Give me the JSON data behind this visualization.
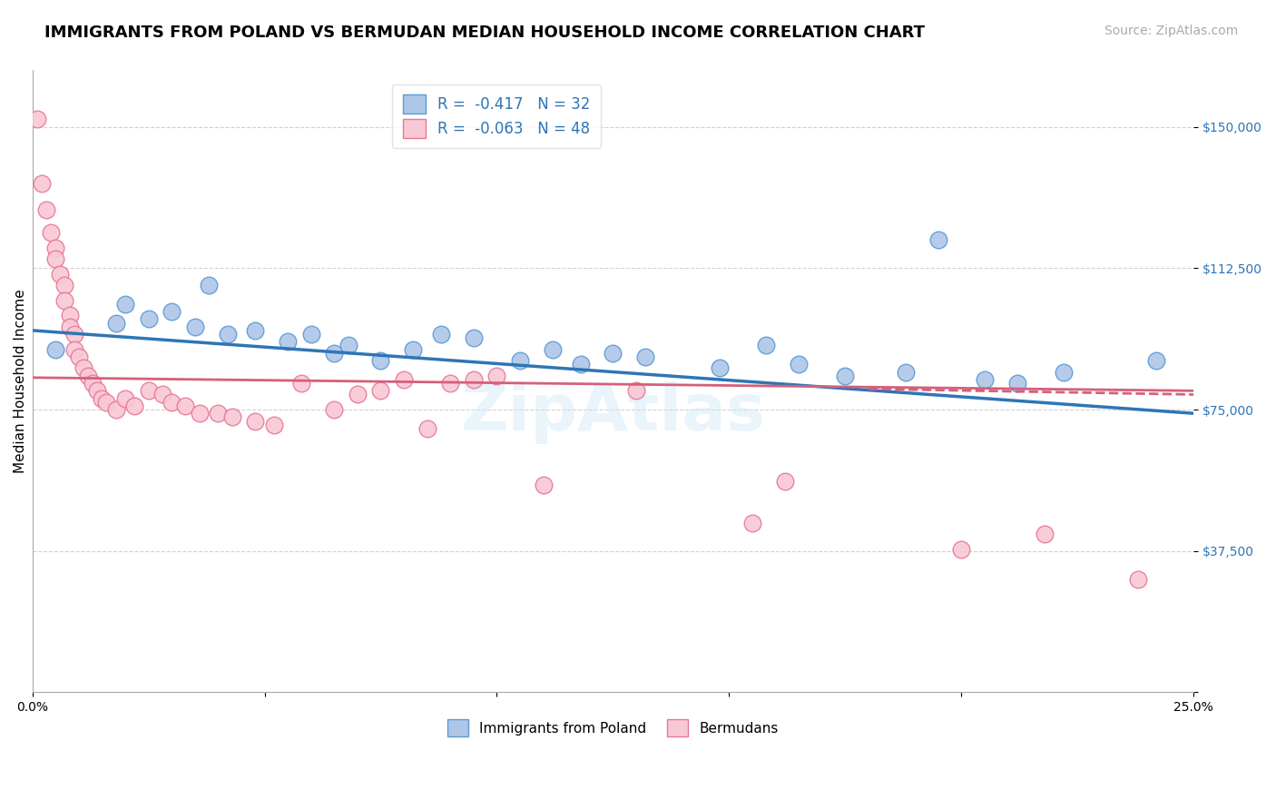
{
  "title": "IMMIGRANTS FROM POLAND VS BERMUDAN MEDIAN HOUSEHOLD INCOME CORRELATION CHART",
  "source_text": "Source: ZipAtlas.com",
  "ylabel": "Median Household Income",
  "xlim": [
    0.0,
    0.25
  ],
  "ylim": [
    0,
    165000
  ],
  "yticks": [
    0,
    37500,
    75000,
    112500,
    150000
  ],
  "ytick_labels": [
    "",
    "$37,500",
    "$75,000",
    "$112,500",
    "$150,000"
  ],
  "xticks": [
    0.0,
    0.05,
    0.1,
    0.15,
    0.2,
    0.25
  ],
  "xtick_labels": [
    "0.0%",
    "",
    "",
    "",
    "",
    "25.0%"
  ],
  "legend_entries": [
    {
      "label": "R =  -0.417   N = 32"
    },
    {
      "label": "R =  -0.063   N = 48"
    }
  ],
  "blue_scatter_x": [
    0.005,
    0.018,
    0.02,
    0.025,
    0.03,
    0.035,
    0.038,
    0.042,
    0.048,
    0.055,
    0.06,
    0.065,
    0.068,
    0.075,
    0.082,
    0.088,
    0.095,
    0.105,
    0.112,
    0.118,
    0.125,
    0.132,
    0.148,
    0.158,
    0.165,
    0.175,
    0.188,
    0.195,
    0.205,
    0.212,
    0.222,
    0.242
  ],
  "blue_scatter_y": [
    91000,
    98000,
    103000,
    99000,
    101000,
    97000,
    108000,
    95000,
    96000,
    93000,
    95000,
    90000,
    92000,
    88000,
    91000,
    95000,
    94000,
    88000,
    91000,
    87000,
    90000,
    89000,
    86000,
    92000,
    87000,
    84000,
    85000,
    120000,
    83000,
    82000,
    85000,
    88000
  ],
  "pink_scatter_x": [
    0.001,
    0.002,
    0.003,
    0.004,
    0.005,
    0.005,
    0.006,
    0.007,
    0.007,
    0.008,
    0.008,
    0.009,
    0.009,
    0.01,
    0.011,
    0.012,
    0.013,
    0.014,
    0.015,
    0.016,
    0.018,
    0.02,
    0.022,
    0.025,
    0.028,
    0.03,
    0.033,
    0.036,
    0.04,
    0.043,
    0.048,
    0.052,
    0.058,
    0.065,
    0.07,
    0.075,
    0.08,
    0.085,
    0.09,
    0.095,
    0.1,
    0.11,
    0.13,
    0.155,
    0.162,
    0.2,
    0.218,
    0.238
  ],
  "pink_scatter_y": [
    152000,
    135000,
    128000,
    122000,
    118000,
    115000,
    111000,
    108000,
    104000,
    100000,
    97000,
    95000,
    91000,
    89000,
    86000,
    84000,
    82000,
    80000,
    78000,
    77000,
    75000,
    78000,
    76000,
    80000,
    79000,
    77000,
    76000,
    74000,
    74000,
    73000,
    72000,
    71000,
    82000,
    75000,
    79000,
    80000,
    83000,
    70000,
    82000,
    83000,
    84000,
    55000,
    80000,
    45000,
    56000,
    38000,
    42000,
    30000
  ],
  "blue_line_x": [
    0.0,
    0.25
  ],
  "blue_line_y": [
    96000,
    74000
  ],
  "pink_line_x": [
    0.0,
    0.25
  ],
  "pink_line_y": [
    83500,
    80000
  ],
  "pink_dashed_line_x": [
    0.18,
    0.25
  ],
  "pink_dashed_line_y": [
    80500,
    79000
  ],
  "blue_scatter_color": "#aec6e8",
  "blue_edge_color": "#5b9bd5",
  "pink_scatter_color": "#f8c8d4",
  "pink_edge_color": "#e8779a",
  "trend_blue": "#2e75b6",
  "trend_pink": "#d4607a",
  "ytick_color": "#2e75b6",
  "watermark": "ZipAtlas",
  "title_fontsize": 13,
  "axis_label_fontsize": 11,
  "tick_fontsize": 10,
  "source_fontsize": 10,
  "legend_blue_label": "R =  -0.417   N = 32",
  "legend_pink_label": "R =  -0.063   N = 48",
  "bottom_legend_blue": "Immigrants from Poland",
  "bottom_legend_pink": "Bermudans"
}
